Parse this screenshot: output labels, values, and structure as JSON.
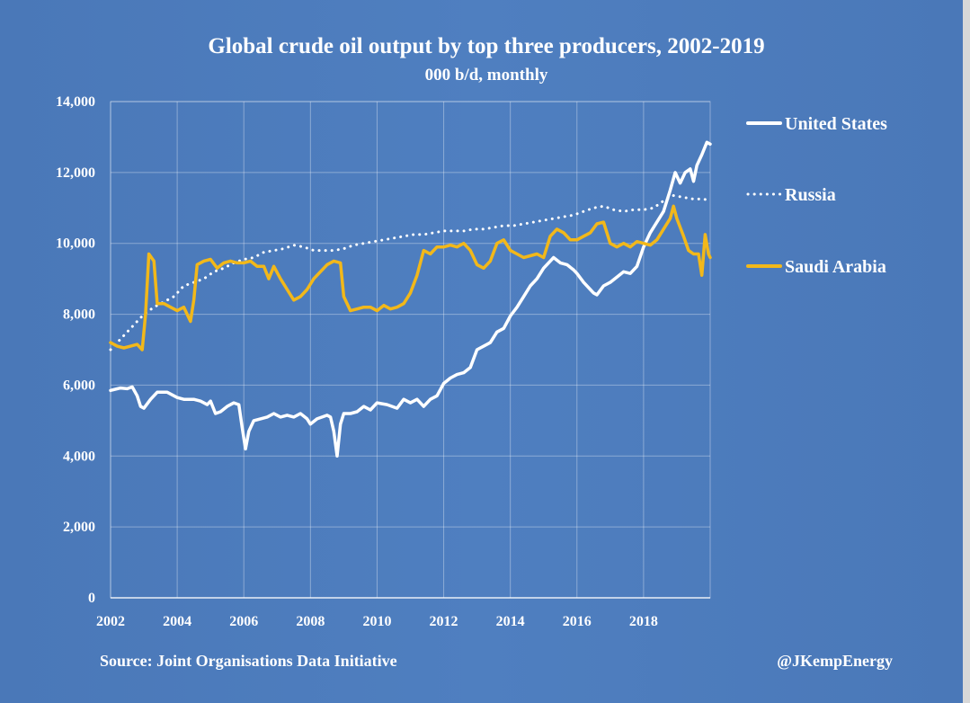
{
  "chart_data": {
    "type": "line",
    "title": "Global crude oil output by top three producers, 2002-2019",
    "subtitle": "000 b/d, monthly",
    "xlabel": "",
    "ylabel": "",
    "xlim": [
      2002,
      2020
    ],
    "ylim": [
      0,
      14000
    ],
    "x_ticks": [
      2002,
      2004,
      2006,
      2008,
      2010,
      2012,
      2014,
      2016,
      2018
    ],
    "x_tick_labels": [
      "2002",
      "2004",
      "2006",
      "2008",
      "2010",
      "2012",
      "2014",
      "2016",
      "2018"
    ],
    "y_ticks": [
      0,
      2000,
      4000,
      6000,
      8000,
      10000,
      12000,
      14000
    ],
    "y_tick_labels": [
      "0",
      "2,000",
      "4,000",
      "6,000",
      "8,000",
      "10,000",
      "12,000",
      "14,000"
    ],
    "grid": true,
    "legend_position": "right",
    "source": "Source: Joint Organisations Data Initiative",
    "credit": "@JKempEnergy",
    "series": [
      {
        "name": "United States",
        "style": "solid",
        "color": "#ffffff",
        "points": [
          [
            2002.0,
            5850
          ],
          [
            2002.3,
            5920
          ],
          [
            2002.5,
            5900
          ],
          [
            2002.65,
            5950
          ],
          [
            2002.8,
            5700
          ],
          [
            2002.9,
            5400
          ],
          [
            2003.0,
            5350
          ],
          [
            2003.2,
            5600
          ],
          [
            2003.4,
            5800
          ],
          [
            2003.7,
            5800
          ],
          [
            2004.0,
            5650
          ],
          [
            2004.2,
            5600
          ],
          [
            2004.5,
            5600
          ],
          [
            2004.7,
            5550
          ],
          [
            2004.9,
            5450
          ],
          [
            2005.0,
            5550
          ],
          [
            2005.15,
            5200
          ],
          [
            2005.3,
            5250
          ],
          [
            2005.5,
            5400
          ],
          [
            2005.7,
            5500
          ],
          [
            2005.85,
            5450
          ],
          [
            2005.95,
            4800
          ],
          [
            2006.05,
            4200
          ],
          [
            2006.15,
            4700
          ],
          [
            2006.3,
            5000
          ],
          [
            2006.5,
            5050
          ],
          [
            2006.7,
            5100
          ],
          [
            2006.9,
            5200
          ],
          [
            2007.1,
            5100
          ],
          [
            2007.3,
            5150
          ],
          [
            2007.5,
            5100
          ],
          [
            2007.7,
            5200
          ],
          [
            2007.9,
            5050
          ],
          [
            2008.0,
            4900
          ],
          [
            2008.2,
            5050
          ],
          [
            2008.5,
            5150
          ],
          [
            2008.6,
            5100
          ],
          [
            2008.7,
            4700
          ],
          [
            2008.8,
            4000
          ],
          [
            2008.9,
            4900
          ],
          [
            2009.0,
            5200
          ],
          [
            2009.2,
            5200
          ],
          [
            2009.4,
            5250
          ],
          [
            2009.6,
            5400
          ],
          [
            2009.8,
            5300
          ],
          [
            2010.0,
            5500
          ],
          [
            2010.3,
            5450
          ],
          [
            2010.6,
            5350
          ],
          [
            2010.8,
            5600
          ],
          [
            2011.0,
            5500
          ],
          [
            2011.2,
            5600
          ],
          [
            2011.4,
            5400
          ],
          [
            2011.6,
            5600
          ],
          [
            2011.8,
            5700
          ],
          [
            2012.0,
            6050
          ],
          [
            2012.2,
            6200
          ],
          [
            2012.4,
            6300
          ],
          [
            2012.6,
            6350
          ],
          [
            2012.8,
            6500
          ],
          [
            2013.0,
            7000
          ],
          [
            2013.2,
            7100
          ],
          [
            2013.4,
            7200
          ],
          [
            2013.6,
            7500
          ],
          [
            2013.8,
            7600
          ],
          [
            2014.0,
            7950
          ],
          [
            2014.2,
            8200
          ],
          [
            2014.4,
            8500
          ],
          [
            2014.6,
            8800
          ],
          [
            2014.8,
            9000
          ],
          [
            2015.0,
            9300
          ],
          [
            2015.2,
            9500
          ],
          [
            2015.3,
            9600
          ],
          [
            2015.5,
            9450
          ],
          [
            2015.7,
            9400
          ],
          [
            2015.9,
            9250
          ],
          [
            2016.0,
            9150
          ],
          [
            2016.2,
            8900
          ],
          [
            2016.4,
            8700
          ],
          [
            2016.5,
            8600
          ],
          [
            2016.6,
            8550
          ],
          [
            2016.8,
            8800
          ],
          [
            2017.0,
            8900
          ],
          [
            2017.2,
            9050
          ],
          [
            2017.4,
            9200
          ],
          [
            2017.6,
            9150
          ],
          [
            2017.8,
            9350
          ],
          [
            2018.0,
            9900
          ],
          [
            2018.2,
            10300
          ],
          [
            2018.4,
            10600
          ],
          [
            2018.6,
            10900
          ],
          [
            2018.8,
            11500
          ],
          [
            2018.95,
            12000
          ],
          [
            2019.1,
            11700
          ],
          [
            2019.25,
            12000
          ],
          [
            2019.4,
            12100
          ],
          [
            2019.5,
            11750
          ],
          [
            2019.6,
            12200
          ],
          [
            2019.75,
            12500
          ],
          [
            2019.9,
            12850
          ],
          [
            2020.0,
            12800
          ]
        ]
      },
      {
        "name": "Russia",
        "style": "dotted",
        "color": "#ffffff",
        "points": [
          [
            2002.0,
            7000
          ],
          [
            2002.2,
            7200
          ],
          [
            2002.5,
            7500
          ],
          [
            2002.8,
            7800
          ],
          [
            2003.0,
            8000
          ],
          [
            2003.3,
            8200
          ],
          [
            2003.6,
            8350
          ],
          [
            2003.9,
            8500
          ],
          [
            2004.2,
            8800
          ],
          [
            2004.5,
            8900
          ],
          [
            2004.8,
            9000
          ],
          [
            2005.1,
            9200
          ],
          [
            2005.4,
            9300
          ],
          [
            2005.7,
            9450
          ],
          [
            2006.0,
            9550
          ],
          [
            2006.3,
            9600
          ],
          [
            2006.6,
            9750
          ],
          [
            2006.9,
            9800
          ],
          [
            2007.2,
            9850
          ],
          [
            2007.5,
            9950
          ],
          [
            2007.8,
            9900
          ],
          [
            2008.1,
            9800
          ],
          [
            2008.4,
            9800
          ],
          [
            2008.7,
            9800
          ],
          [
            2009.0,
            9850
          ],
          [
            2009.3,
            9950
          ],
          [
            2009.6,
            10000
          ],
          [
            2009.9,
            10050
          ],
          [
            2010.2,
            10100
          ],
          [
            2010.5,
            10150
          ],
          [
            2010.8,
            10200
          ],
          [
            2011.1,
            10250
          ],
          [
            2011.4,
            10250
          ],
          [
            2011.7,
            10300
          ],
          [
            2012.0,
            10350
          ],
          [
            2012.3,
            10350
          ],
          [
            2012.6,
            10350
          ],
          [
            2012.9,
            10400
          ],
          [
            2013.2,
            10400
          ],
          [
            2013.5,
            10450
          ],
          [
            2013.8,
            10500
          ],
          [
            2014.1,
            10500
          ],
          [
            2014.4,
            10550
          ],
          [
            2014.7,
            10600
          ],
          [
            2015.0,
            10650
          ],
          [
            2015.3,
            10700
          ],
          [
            2015.6,
            10750
          ],
          [
            2015.9,
            10800
          ],
          [
            2016.2,
            10900
          ],
          [
            2016.5,
            11000
          ],
          [
            2016.8,
            11050
          ],
          [
            2017.1,
            10950
          ],
          [
            2017.4,
            10900
          ],
          [
            2017.7,
            10950
          ],
          [
            2018.0,
            10950
          ],
          [
            2018.3,
            11000
          ],
          [
            2018.6,
            11200
          ],
          [
            2018.9,
            11350
          ],
          [
            2019.2,
            11300
          ],
          [
            2019.5,
            11250
          ],
          [
            2019.8,
            11250
          ],
          [
            2020.0,
            11200
          ]
        ]
      },
      {
        "name": "Saudi Arabia",
        "style": "solid",
        "color": "#f2b81a",
        "points": [
          [
            2002.0,
            7200
          ],
          [
            2002.2,
            7100
          ],
          [
            2002.4,
            7050
          ],
          [
            2002.6,
            7100
          ],
          [
            2002.8,
            7150
          ],
          [
            2002.95,
            7000
          ],
          [
            2003.05,
            8000
          ],
          [
            2003.15,
            9700
          ],
          [
            2003.3,
            9500
          ],
          [
            2003.4,
            8300
          ],
          [
            2003.6,
            8300
          ],
          [
            2003.8,
            8200
          ],
          [
            2004.0,
            8100
          ],
          [
            2004.2,
            8200
          ],
          [
            2004.4,
            7800
          ],
          [
            2004.5,
            8400
          ],
          [
            2004.6,
            9400
          ],
          [
            2004.8,
            9500
          ],
          [
            2005.0,
            9550
          ],
          [
            2005.2,
            9300
          ],
          [
            2005.4,
            9450
          ],
          [
            2005.6,
            9500
          ],
          [
            2005.8,
            9450
          ],
          [
            2006.0,
            9450
          ],
          [
            2006.2,
            9500
          ],
          [
            2006.4,
            9350
          ],
          [
            2006.6,
            9350
          ],
          [
            2006.75,
            9000
          ],
          [
            2006.9,
            9350
          ],
          [
            2007.1,
            9000
          ],
          [
            2007.3,
            8700
          ],
          [
            2007.5,
            8400
          ],
          [
            2007.7,
            8500
          ],
          [
            2007.9,
            8700
          ],
          [
            2008.1,
            9000
          ],
          [
            2008.3,
            9200
          ],
          [
            2008.5,
            9400
          ],
          [
            2008.7,
            9500
          ],
          [
            2008.9,
            9450
          ],
          [
            2009.0,
            8500
          ],
          [
            2009.2,
            8100
          ],
          [
            2009.4,
            8150
          ],
          [
            2009.6,
            8200
          ],
          [
            2009.8,
            8200
          ],
          [
            2010.0,
            8100
          ],
          [
            2010.2,
            8250
          ],
          [
            2010.4,
            8150
          ],
          [
            2010.6,
            8200
          ],
          [
            2010.8,
            8300
          ],
          [
            2011.0,
            8600
          ],
          [
            2011.2,
            9100
          ],
          [
            2011.4,
            9800
          ],
          [
            2011.6,
            9700
          ],
          [
            2011.8,
            9900
          ],
          [
            2012.0,
            9900
          ],
          [
            2012.2,
            9950
          ],
          [
            2012.4,
            9900
          ],
          [
            2012.6,
            10000
          ],
          [
            2012.8,
            9800
          ],
          [
            2013.0,
            9400
          ],
          [
            2013.2,
            9300
          ],
          [
            2013.4,
            9500
          ],
          [
            2013.6,
            10000
          ],
          [
            2013.8,
            10100
          ],
          [
            2014.0,
            9800
          ],
          [
            2014.2,
            9700
          ],
          [
            2014.4,
            9600
          ],
          [
            2014.6,
            9650
          ],
          [
            2014.8,
            9700
          ],
          [
            2015.0,
            9600
          ],
          [
            2015.2,
            10200
          ],
          [
            2015.4,
            10400
          ],
          [
            2015.6,
            10300
          ],
          [
            2015.8,
            10100
          ],
          [
            2016.0,
            10100
          ],
          [
            2016.2,
            10200
          ],
          [
            2016.4,
            10300
          ],
          [
            2016.6,
            10550
          ],
          [
            2016.8,
            10600
          ],
          [
            2017.0,
            10000
          ],
          [
            2017.2,
            9900
          ],
          [
            2017.4,
            10000
          ],
          [
            2017.6,
            9900
          ],
          [
            2017.8,
            10050
          ],
          [
            2018.0,
            10000
          ],
          [
            2018.2,
            9950
          ],
          [
            2018.4,
            10100
          ],
          [
            2018.6,
            10400
          ],
          [
            2018.8,
            10700
          ],
          [
            2018.9,
            11050
          ],
          [
            2019.0,
            10700
          ],
          [
            2019.2,
            10200
          ],
          [
            2019.35,
            9800
          ],
          [
            2019.5,
            9700
          ],
          [
            2019.65,
            9700
          ],
          [
            2019.75,
            9100
          ],
          [
            2019.85,
            10250
          ],
          [
            2019.95,
            9700
          ],
          [
            2020.0,
            9600
          ]
        ]
      }
    ]
  }
}
